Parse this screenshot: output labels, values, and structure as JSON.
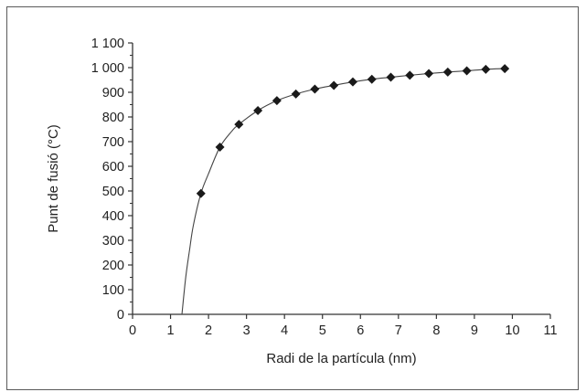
{
  "chart_data": {
    "type": "line",
    "title": "",
    "xlabel": "Radi de la partícula (nm)",
    "ylabel": "Punt de fusió (°C)",
    "xlim": [
      0,
      11
    ],
    "ylim": [
      0,
      1100
    ],
    "x_ticks": [
      0,
      1,
      2,
      3,
      4,
      5,
      6,
      7,
      8,
      9,
      10,
      11
    ],
    "x_tick_labels": [
      "0",
      "1",
      "2",
      "3",
      "4",
      "5",
      "6",
      "7",
      "8",
      "9",
      "10",
      "11"
    ],
    "y_ticks": [
      0,
      100,
      200,
      300,
      400,
      500,
      600,
      700,
      800,
      900,
      1000,
      1100
    ],
    "y_tick_labels": [
      "0",
      "100",
      "200",
      "300",
      "400",
      "500",
      "600",
      "700",
      "800",
      "900",
      "1 000",
      "1 100"
    ],
    "grid": false,
    "series": [
      {
        "marker": "diamond",
        "color": "#1a1a1a",
        "x": [
          1.8,
          2.3,
          2.8,
          3.3,
          3.8,
          4.3,
          4.8,
          5.3,
          5.8,
          6.3,
          6.8,
          7.3,
          7.8,
          8.3,
          8.8,
          9.3,
          9.8
        ],
        "y": [
          490,
          678,
          770,
          826,
          866,
          893,
          913,
          928,
          942,
          953,
          961,
          969,
          976,
          982,
          987,
          993,
          996
        ]
      }
    ],
    "fit_curve": {
      "color": "#444444",
      "x": [
        1.3,
        1.4,
        1.5,
        1.6,
        1.8,
        2.0,
        2.3,
        2.6,
        2.8,
        3.3,
        3.8,
        4.3,
        4.8,
        5.3,
        5.8,
        6.3,
        6.8,
        7.3,
        7.8,
        8.3,
        8.8,
        9.3,
        9.8
      ],
      "y": [
        0,
        150,
        260,
        360,
        490,
        570,
        678,
        740,
        770,
        826,
        866,
        893,
        913,
        928,
        942,
        953,
        961,
        969,
        976,
        982,
        987,
        993,
        996
      ]
    }
  }
}
